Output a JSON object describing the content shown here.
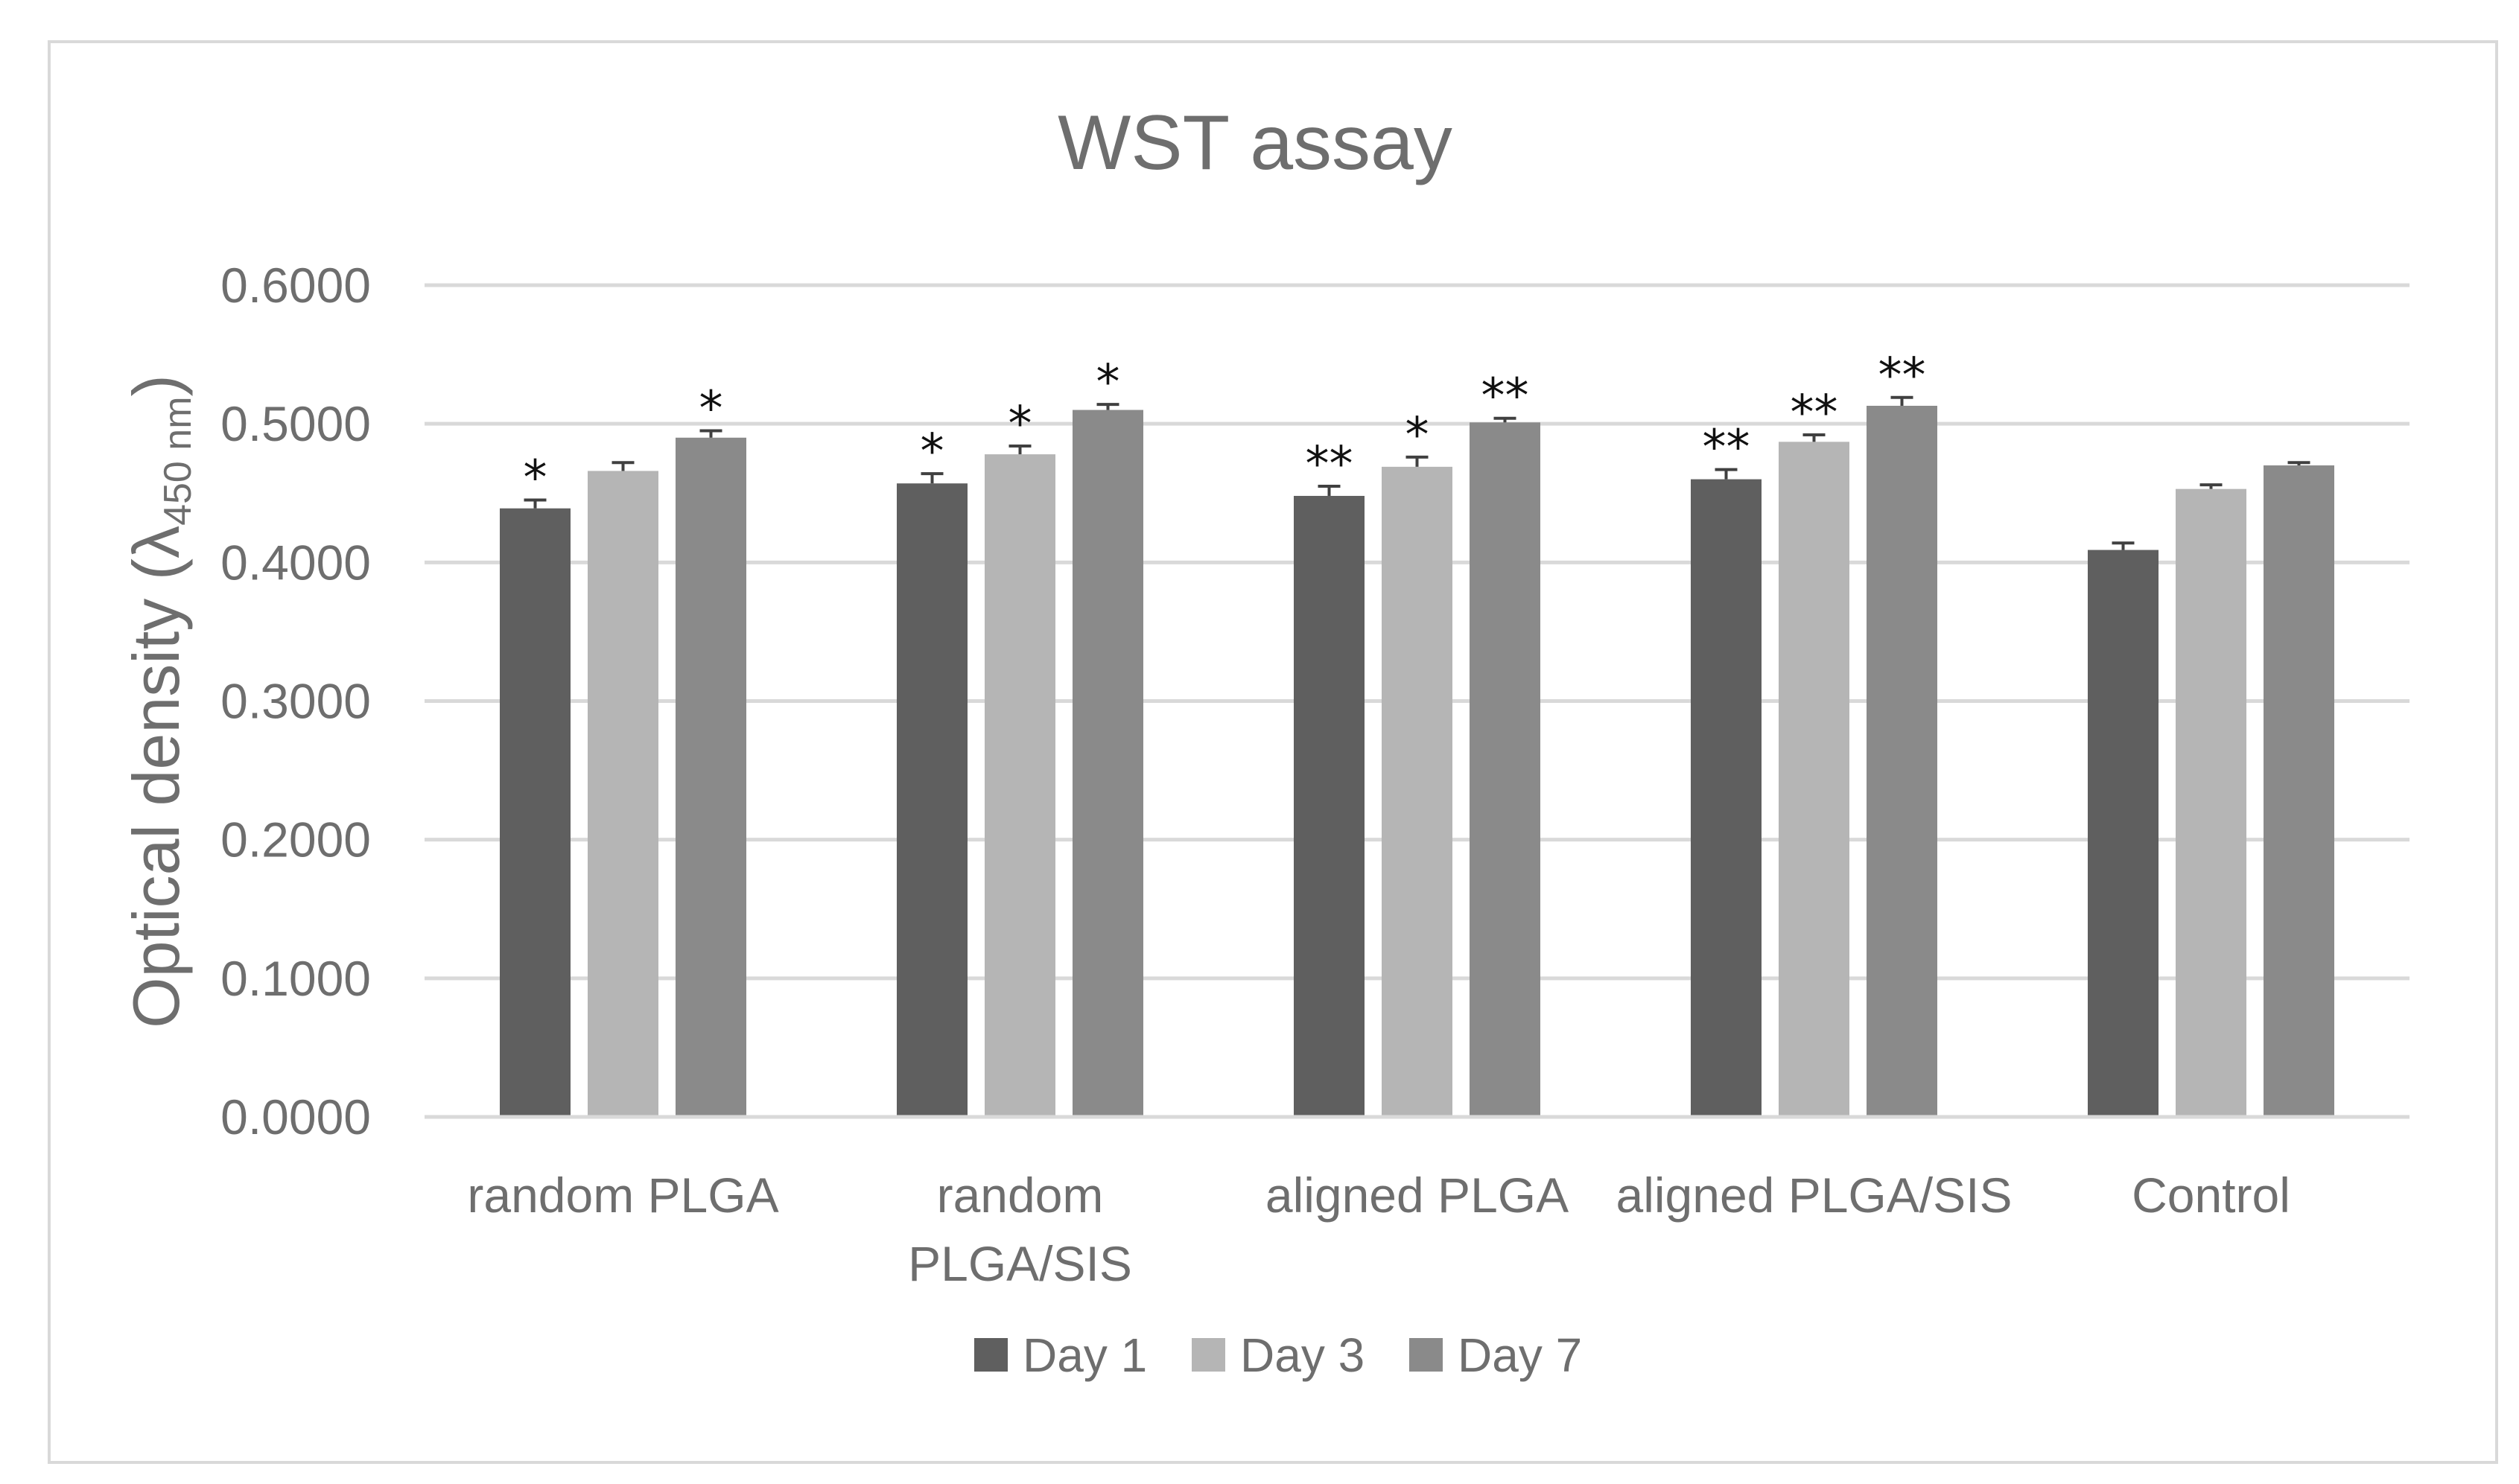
{
  "chart_data": {
    "type": "bar",
    "title": "WST assay",
    "ylabel": {
      "main": "Optical density (λ",
      "sub": "450 nm",
      "close": ")"
    },
    "xlabel": "",
    "ylim": [
      0,
      0.6
    ],
    "yticks": [
      "0.0000",
      "0.1000",
      "0.2000",
      "0.3000",
      "0.4000",
      "0.5000",
      "0.6000"
    ],
    "categories": [
      [
        "random PLGA"
      ],
      [
        "random",
        "PLGA/SIS"
      ],
      [
        "aligned PLGA"
      ],
      [
        "aligned PLGA/SIS"
      ],
      [
        "Control"
      ]
    ],
    "series": [
      {
        "name": "Day 1",
        "color": "#5f5f5f",
        "values": [
          0.439,
          0.457,
          0.448,
          0.46,
          0.409
        ],
        "errors": [
          0.006,
          0.007,
          0.007,
          0.007,
          0.005
        ],
        "annotations": [
          "*",
          "*",
          "**",
          "**",
          ""
        ]
      },
      {
        "name": "Day 3",
        "color": "#b5b5b5",
        "values": [
          0.466,
          0.478,
          0.469,
          0.487,
          0.453
        ],
        "errors": [
          0.006,
          0.006,
          0.007,
          0.005,
          0.003
        ],
        "annotations": [
          "",
          "*",
          "*",
          "**",
          ""
        ]
      },
      {
        "name": "Day 7",
        "color": "#8a8a8a",
        "values": [
          0.49,
          0.51,
          0.501,
          0.513,
          0.47
        ],
        "errors": [
          0.005,
          0.004,
          0.003,
          0.006,
          0.002
        ],
        "annotations": [
          "*",
          "*",
          "**",
          "**",
          ""
        ]
      }
    ],
    "grid": true,
    "legend_position": "bottom",
    "colors": {
      "gridline": "#d9d9d9",
      "text": "#6e6e6e",
      "annotation": "#111111"
    }
  }
}
